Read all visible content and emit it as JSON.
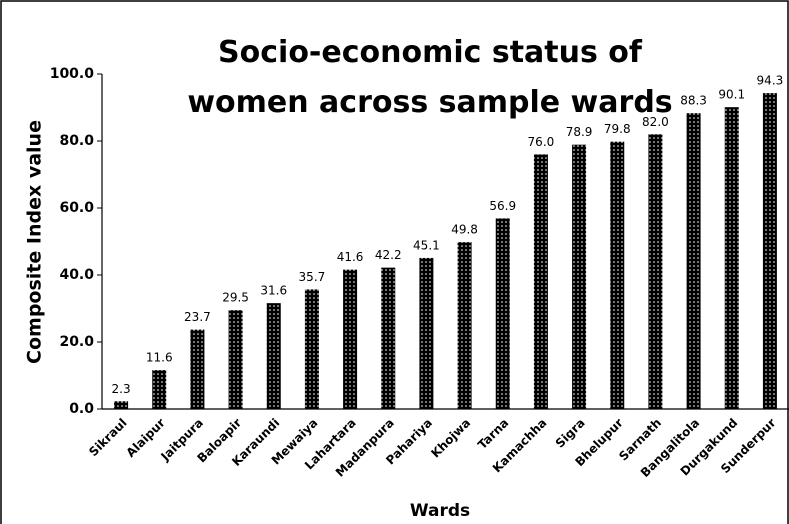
{
  "chart_data": {
    "type": "bar",
    "title": "Socio-economic status of women across sample wards",
    "x_label": "Wards",
    "y_label": "Composite Index value",
    "categories": [
      "Sikraul",
      "Alaipur",
      "Jaitpura",
      "Baloapir",
      "Karaundi",
      "Mewaiya",
      "Lahartara",
      "Madanpura",
      "Pahariya",
      "Khojwa",
      "Tarna",
      "Kamachha",
      "Sigra",
      "Bhelupur",
      "Sarnath",
      "Bangalitola",
      "Durgakund",
      "Sunderpur"
    ],
    "values": [
      2.3,
      11.6,
      23.7,
      29.5,
      31.6,
      35.7,
      41.6,
      42.2,
      45.1,
      49.8,
      56.9,
      76.0,
      78.9,
      79.8,
      82.0,
      88.3,
      90.1,
      94.3
    ],
    "value_labels": [
      "2.3",
      "11.6",
      "23.7",
      "29.5",
      "31.6",
      "35.7",
      "41.6",
      "42.2",
      "45.1",
      "49.8",
      "56.9",
      "76.0",
      "78.9",
      "79.8",
      "82.0",
      "88.3",
      "90.1",
      "94.3"
    ],
    "color": "#000000",
    "ylim": [
      0,
      100
    ],
    "yticks": [
      {
        "value": 0,
        "label": "0.0"
      },
      {
        "value": 20,
        "label": "20.0"
      },
      {
        "value": 40,
        "label": "40.0"
      },
      {
        "value": 60,
        "label": "60.0"
      },
      {
        "value": 80,
        "label": "80.0"
      },
      {
        "value": 100,
        "label": "100.0"
      }
    ],
    "grid": false
  }
}
